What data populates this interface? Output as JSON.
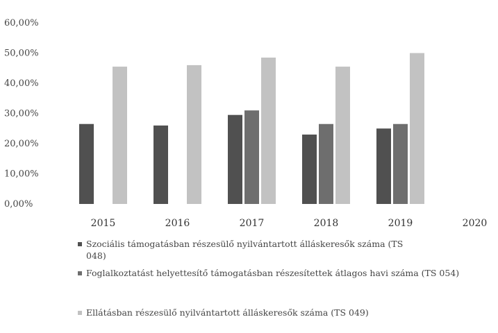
{
  "chart_data": {
    "type": "bar",
    "categories": [
      "2015",
      "2016",
      "2017",
      "2018",
      "2019",
      "2020"
    ],
    "yticks": [
      "0,00%",
      "10,00%",
      "20,00%",
      "30,00%",
      "40,00%",
      "50,00%",
      "60,00%"
    ],
    "ylim": [
      0,
      60
    ],
    "grid": false,
    "legend_position": "bottom",
    "series": [
      {
        "name": "Szociális támogatásban részesülő nyilvántartott álláskeresők száma (TS 048)",
        "color": "#505050",
        "values": [
          26.5,
          26,
          29.5,
          23,
          25,
          null
        ]
      },
      {
        "name": "Foglalkoztatást helyettesítő támogatásban részesítettek átlagos havi száma (TS 054)",
        "color": "#6e6e6e",
        "values": [
          null,
          null,
          31,
          26.5,
          26.5,
          null
        ]
      },
      {
        "name": "Ellátásban részesülő nyilvántartott álláskeresők száma (TS 049)",
        "color": "#c2c2c2",
        "values": [
          45.5,
          46,
          48.5,
          45.5,
          50,
          null
        ]
      }
    ]
  }
}
